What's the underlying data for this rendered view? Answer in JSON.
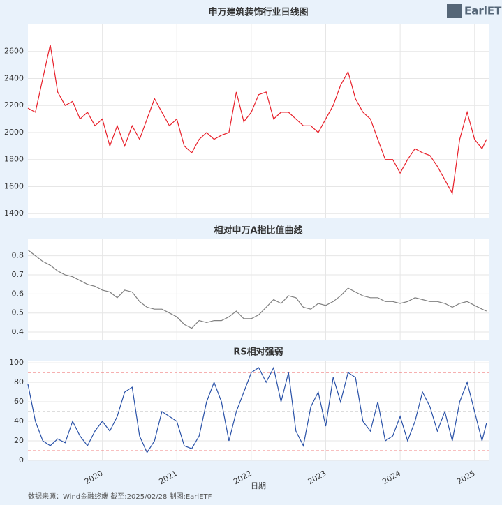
{
  "logo": "EarlETF",
  "footer": "数据来源：Wind金融终端 截至:2025/02/28 制图:EarlETF",
  "chart_data": [
    {
      "type": "line",
      "title": "申万建筑装饰行业日线图",
      "x": [
        2019.0,
        2019.1,
        2019.2,
        2019.3,
        2019.4,
        2019.5,
        2019.6,
        2019.7,
        2019.8,
        2019.9,
        2020.0,
        2020.1,
        2020.2,
        2020.3,
        2020.4,
        2020.5,
        2020.6,
        2020.7,
        2020.8,
        2020.9,
        2021.0,
        2021.1,
        2021.2,
        2021.3,
        2021.4,
        2021.5,
        2021.6,
        2021.7,
        2021.8,
        2021.9,
        2022.0,
        2022.1,
        2022.2,
        2022.3,
        2022.4,
        2022.5,
        2022.6,
        2022.7,
        2022.8,
        2022.9,
        2023.0,
        2023.1,
        2023.2,
        2023.3,
        2023.4,
        2023.5,
        2023.6,
        2023.7,
        2023.8,
        2023.9,
        2024.0,
        2024.1,
        2024.2,
        2024.3,
        2024.4,
        2024.5,
        2024.6,
        2024.7,
        2024.8,
        2024.9,
        2025.0,
        2025.1,
        2025.16
      ],
      "series": [
        {
          "color": "#e8202a",
          "values": [
            2180,
            2150,
            2400,
            2650,
            2300,
            2200,
            2230,
            2100,
            2150,
            2050,
            2100,
            1900,
            2050,
            1900,
            2050,
            1950,
            2100,
            2250,
            2150,
            2050,
            2100,
            1900,
            1850,
            1950,
            2000,
            1950,
            1980,
            2000,
            2300,
            2080,
            2150,
            2280,
            2300,
            2100,
            2150,
            2150,
            2100,
            2050,
            2050,
            2000,
            2100,
            2200,
            2350,
            2450,
            2250,
            2150,
            2100,
            1950,
            1800,
            1800,
            1700,
            1800,
            1880,
            1850,
            1830,
            1750,
            1650,
            1550,
            1950,
            2150,
            1950,
            1880,
            1950
          ]
        }
      ],
      "xlim": [
        2019.0,
        2025.19
      ],
      "xticks": [
        2020,
        2021,
        2022,
        2023,
        2024,
        2025
      ],
      "ylim": [
        1370,
        2800
      ],
      "yticks": [
        1400,
        1600,
        1800,
        2000,
        2200,
        2400,
        2600
      ],
      "grid": true
    },
    {
      "type": "line",
      "title": "相对申万A指比值曲线",
      "x": [
        2019.0,
        2019.1,
        2019.2,
        2019.3,
        2019.4,
        2019.5,
        2019.6,
        2019.7,
        2019.8,
        2019.9,
        2020.0,
        2020.1,
        2020.2,
        2020.3,
        2020.4,
        2020.5,
        2020.6,
        2020.7,
        2020.8,
        2020.9,
        2021.0,
        2021.1,
        2021.2,
        2021.3,
        2021.4,
        2021.5,
        2021.6,
        2021.7,
        2021.8,
        2021.9,
        2022.0,
        2022.1,
        2022.2,
        2022.3,
        2022.4,
        2022.5,
        2022.6,
        2022.7,
        2022.8,
        2022.9,
        2023.0,
        2023.1,
        2023.2,
        2023.3,
        2023.4,
        2023.5,
        2023.6,
        2023.7,
        2023.8,
        2023.9,
        2024.0,
        2024.1,
        2024.2,
        2024.3,
        2024.4,
        2024.5,
        2024.6,
        2024.7,
        2024.8,
        2024.9,
        2025.0,
        2025.1,
        2025.16
      ],
      "series": [
        {
          "color": "#808080",
          "values": [
            0.83,
            0.8,
            0.77,
            0.75,
            0.72,
            0.7,
            0.69,
            0.67,
            0.65,
            0.64,
            0.62,
            0.61,
            0.58,
            0.62,
            0.61,
            0.56,
            0.53,
            0.52,
            0.52,
            0.5,
            0.48,
            0.44,
            0.42,
            0.46,
            0.45,
            0.46,
            0.46,
            0.48,
            0.51,
            0.47,
            0.47,
            0.49,
            0.53,
            0.57,
            0.55,
            0.59,
            0.58,
            0.53,
            0.52,
            0.55,
            0.54,
            0.56,
            0.59,
            0.63,
            0.61,
            0.59,
            0.58,
            0.58,
            0.56,
            0.56,
            0.55,
            0.56,
            0.58,
            0.57,
            0.56,
            0.56,
            0.55,
            0.53,
            0.55,
            0.56,
            0.54,
            0.52,
            0.51
          ]
        }
      ],
      "xlim": [
        2019.0,
        2025.19
      ],
      "xticks": [
        2020,
        2021,
        2022,
        2023,
        2024,
        2025
      ],
      "ylim": [
        0.36,
        0.89
      ],
      "yticks": [
        0.4,
        0.5,
        0.6,
        0.7,
        0.8
      ],
      "grid": true
    },
    {
      "type": "line",
      "title": "RS相对强弱",
      "xlabel": "日期",
      "x": [
        2019.0,
        2019.1,
        2019.2,
        2019.3,
        2019.4,
        2019.5,
        2019.6,
        2019.7,
        2019.8,
        2019.9,
        2020.0,
        2020.1,
        2020.2,
        2020.3,
        2020.4,
        2020.5,
        2020.6,
        2020.7,
        2020.8,
        2020.9,
        2021.0,
        2021.1,
        2021.2,
        2021.3,
        2021.4,
        2021.5,
        2021.6,
        2021.7,
        2021.8,
        2021.9,
        2022.0,
        2022.1,
        2022.2,
        2022.3,
        2022.4,
        2022.5,
        2022.6,
        2022.7,
        2022.8,
        2022.9,
        2023.0,
        2023.1,
        2023.2,
        2023.3,
        2023.4,
        2023.5,
        2023.6,
        2023.7,
        2023.8,
        2023.9,
        2024.0,
        2024.1,
        2024.2,
        2024.3,
        2024.4,
        2024.5,
        2024.6,
        2024.7,
        2024.8,
        2024.9,
        2025.0,
        2025.1,
        2025.16
      ],
      "series": [
        {
          "color": "#2a52a8",
          "values": [
            78,
            40,
            20,
            15,
            22,
            18,
            40,
            25,
            15,
            30,
            40,
            30,
            45,
            70,
            75,
            25,
            8,
            20,
            50,
            45,
            40,
            15,
            12,
            25,
            60,
            80,
            60,
            20,
            50,
            70,
            90,
            95,
            80,
            95,
            60,
            90,
            30,
            15,
            55,
            70,
            35,
            85,
            60,
            90,
            85,
            40,
            30,
            60,
            20,
            25,
            45,
            20,
            40,
            70,
            55,
            30,
            50,
            20,
            60,
            80,
            50,
            20,
            38
          ]
        }
      ],
      "hlines": [
        {
          "value": 90,
          "color": "#f08080"
        },
        {
          "value": 50,
          "color": "#bbbbbb"
        },
        {
          "value": 10,
          "color": "#f08080"
        }
      ],
      "xlim": [
        2019.0,
        2025.19
      ],
      "xticks": [
        2020,
        2021,
        2022,
        2023,
        2024,
        2025
      ],
      "ylim": [
        0,
        101.5
      ],
      "yticks": [
        0,
        20,
        40,
        60,
        80,
        100
      ],
      "grid": true
    }
  ]
}
